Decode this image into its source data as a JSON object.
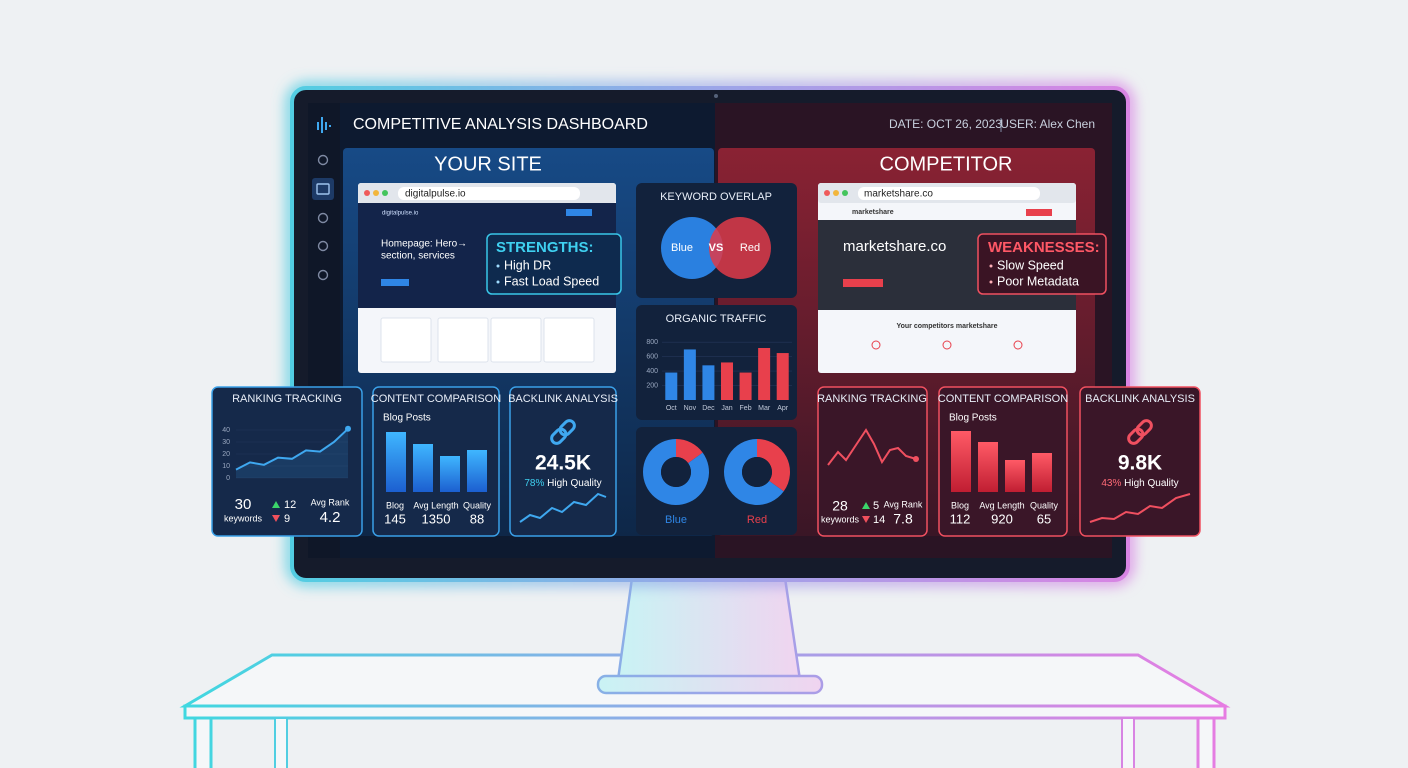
{
  "header": {
    "title": "COMPETITIVE ANALYSIS DASHBOARD",
    "date": "DATE: OCT 26, 2023",
    "user": "USER: Alex Chen"
  },
  "your_site": {
    "heading": "YOUR SITE",
    "url": "digitalpulse.io",
    "hero": [
      "Homepage: Hero→",
      "section, services"
    ],
    "strengths": {
      "title": "STRENGTHS:",
      "items": [
        "High DR",
        "Fast Load Speed"
      ]
    }
  },
  "competitor": {
    "heading": "COMPETITOR",
    "url": "marketshare.co",
    "brand": "marketshare",
    "hero": "marketshare.co",
    "section_title": "Your competitors marketshare",
    "weaknesses": {
      "title": "WEAKNESSES:",
      "items": [
        "Slow Speed",
        "Poor Metadata"
      ]
    }
  },
  "keyword_overlap": {
    "title": "KEYWORD OVERLAP",
    "left": "Blue",
    "center": "VS",
    "right": "Red"
  },
  "your_metrics": {
    "ranking": {
      "keywords": 30,
      "keywords_label": "keywords",
      "up": 12,
      "down": 9,
      "avg_rank_label": "Avg Rank",
      "avg_rank": 4.2
    },
    "content": {
      "title": "CONTENT COMPARISON",
      "subtitle": "Blog Posts",
      "labels": [
        "Blog",
        "Avg Length",
        "Quality"
      ],
      "values": [
        145,
        1350,
        88
      ]
    },
    "backlinks": {
      "title": "BACKLINK ANALYSIS",
      "total": "24.5K",
      "quality_share": "78%",
      "quality_label": "High Quality"
    }
  },
  "competitor_metrics": {
    "ranking": {
      "title": "RANKING TRACKING",
      "keywords": 28,
      "keywords_label": "keywords",
      "up": 5,
      "down": 14,
      "avg_rank_label": "Avg Rank",
      "avg_rank": 7.8
    },
    "content": {
      "title": "CONTENT COMPARISON",
      "subtitle": "Blog Posts",
      "labels": [
        "Blog",
        "Avg Length",
        "Quality"
      ],
      "values": [
        112,
        920,
        65
      ]
    },
    "backlinks": {
      "title": "BACKLINK ANALYSIS",
      "total": "9.8K",
      "quality_share": "43%",
      "quality_label": "High Quality"
    }
  },
  "chart_data": [
    {
      "type": "bar",
      "title": "ORGANIC TRAFFIC",
      "categories": [
        "Oct",
        "Nov",
        "Dec",
        "Jan",
        "Feb",
        "Mar",
        "Apr"
      ],
      "series": [
        {
          "color": "#2f86e6",
          "values": [
            380,
            700,
            480,
            null,
            null,
            null,
            null
          ]
        },
        {
          "color": "#e8404c",
          "values": [
            null,
            null,
            null,
            520,
            380,
            720,
            650
          ]
        }
      ],
      "ylim": [
        0,
        900
      ],
      "yticks": [
        200,
        400,
        600,
        800
      ]
    },
    {
      "type": "line",
      "title": "RANKING TRACKING",
      "values": [
        7,
        13,
        11,
        17,
        16,
        23,
        22,
        30,
        41
      ],
      "color": "#3fa8f0",
      "ylim": [
        0,
        45
      ],
      "yticks": [
        0,
        10,
        20,
        30,
        40
      ],
      "grid": true
    },
    {
      "type": "pie",
      "labels": [
        "Blue",
        "Red"
      ],
      "colors": [
        "#e8404c",
        "#2f86e6"
      ],
      "donuts": [
        [
          15,
          85
        ],
        [
          35,
          65
        ]
      ]
    }
  ]
}
